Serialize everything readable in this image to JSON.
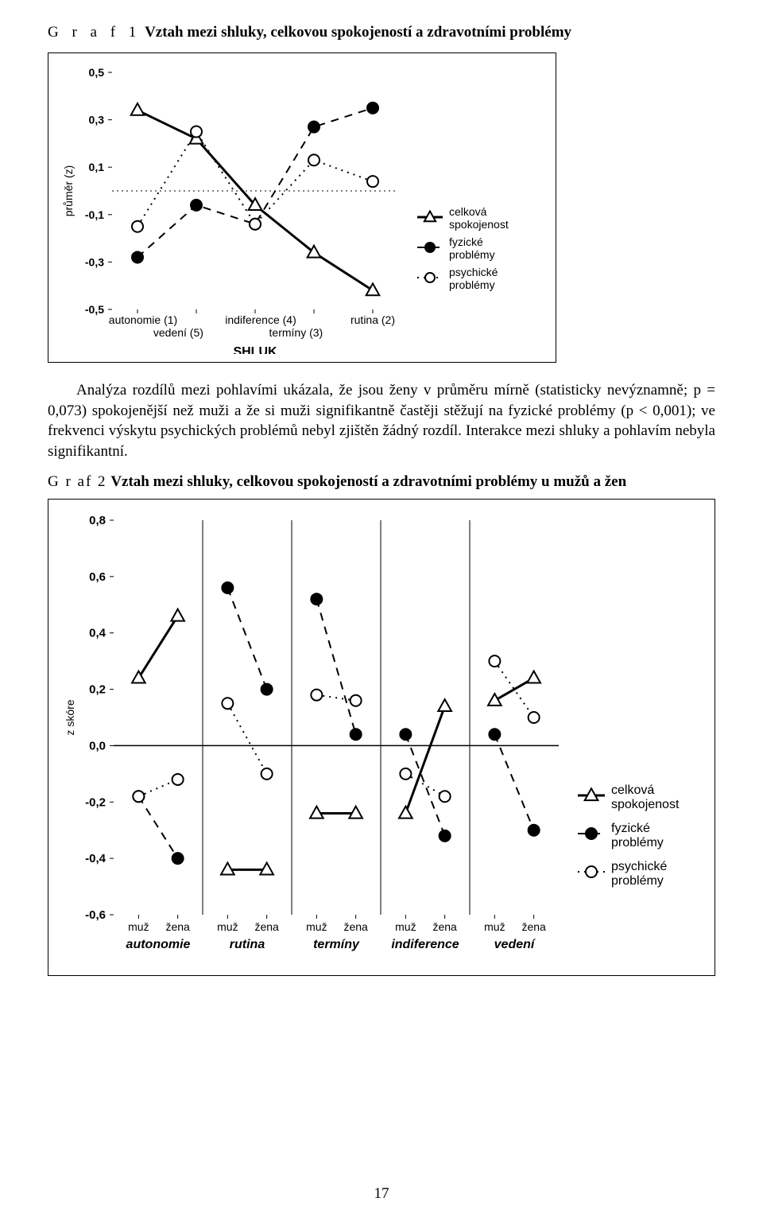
{
  "page_number": "17",
  "title1": {
    "prefix": "G r a f 1",
    "bold": "Vztah mezi shluky, celkovou spokojeností a zdravotními problémy"
  },
  "body": "Analýza rozdílů mezi pohlavími ukázala, že jsou ženy v průměru mírně (statisticky nevýznamně; p = 0,073) spokojenější než muži a že si muži signifikantně častěji stěžují na fyzické problémy (p < 0,001); ve frekvenci výskytu psychických problémů nebyl zjištěn žádný rozdíl. Interakce mezi shluky a pohlavím nebyla signifikantní.",
  "title2": {
    "prefix": "G r af 2",
    "bold": "Vztah mezi shluky, celkovou spokojeností a zdravotními problémy u mužů a žen"
  },
  "chart1": {
    "type": "line",
    "ylabel": "průměr (z)",
    "x_axis_label": "SHLUK",
    "x_categories": [
      "autonomie (1)",
      "vedení (5)",
      "indiference (4)",
      "termíny (3)",
      "rutina (2)"
    ],
    "x_layout": [
      {
        "top": "autonomie (1)",
        "bottom": "vedení (5)"
      },
      {
        "top": "indiference (4)",
        "bottom": "termíny (3)"
      },
      {
        "top": "rutina (2)",
        "bottom": ""
      }
    ],
    "y_ticks": [
      -0.5,
      -0.3,
      -0.1,
      0.1,
      0.3,
      0.5
    ],
    "y_tick_labels": [
      "-0,5",
      "-0,3",
      "-0,1",
      "0,1",
      "0,3",
      "0,5"
    ],
    "ylim": [
      -0.5,
      0.5
    ],
    "series": {
      "celkova_spokojenost": {
        "label": "celková spokojenost",
        "marker": "triangle",
        "color": "#000000",
        "fill": "none",
        "line": "solid",
        "values": [
          0.34,
          0.22,
          -0.06,
          -0.26,
          -0.42
        ]
      },
      "fyzicke_problemy": {
        "label": "fyzické problémy",
        "marker": "circle",
        "color": "#000000",
        "fill": "#000000",
        "line": "dashed",
        "values": [
          -0.28,
          -0.06,
          -0.14,
          0.27,
          0.35
        ]
      },
      "psychicke_problemy": {
        "label": "psychické problémy",
        "marker": "circle",
        "color": "#000000",
        "fill": "none",
        "line": "dotted",
        "values": [
          -0.15,
          0.25,
          -0.14,
          0.13,
          0.04
        ]
      }
    },
    "background": "#ffffff",
    "tick_fontsize": 14,
    "label_fontsize": 14,
    "axis_title_fontsize": 14,
    "legend_fontsize": 14
  },
  "chart2": {
    "type": "panel-line",
    "ylabel": "z skóre",
    "y_ticks": [
      -0.6,
      -0.4,
      -0.2,
      0.0,
      0.2,
      0.4,
      0.6,
      0.8
    ],
    "y_tick_labels": [
      "-0,6",
      "-0,4",
      "-0,2",
      "0,0",
      "0,2",
      "0,4",
      "0,6",
      "0,8"
    ],
    "ylim": [
      -0.6,
      0.8
    ],
    "x_sub_labels": [
      "muž",
      "žena"
    ],
    "panels": [
      {
        "name": "autonomie",
        "series": {
          "celkova": [
            0.24,
            0.46
          ],
          "fyzicke": [
            -0.18,
            -0.4
          ],
          "psychicke": [
            -0.18,
            -0.12
          ]
        }
      },
      {
        "name": "rutina",
        "series": {
          "celkova": [
            -0.44,
            -0.44
          ],
          "fyzicke": [
            0.56,
            0.2
          ],
          "psychicke": [
            0.15,
            -0.1
          ]
        }
      },
      {
        "name": "termíny",
        "series": {
          "celkova": [
            -0.24,
            -0.24
          ],
          "fyzicke": [
            0.52,
            0.04
          ],
          "psychicke": [
            0.18,
            0.16
          ]
        }
      },
      {
        "name": "indiference",
        "series": {
          "celkova": [
            -0.24,
            0.14
          ],
          "fyzicke": [
            0.04,
            -0.32
          ],
          "psychicke": [
            -0.1,
            -0.18
          ]
        }
      },
      {
        "name": "vedení",
        "series": {
          "celkova": [
            0.16,
            0.24
          ],
          "fyzicke": [
            0.04,
            -0.3
          ],
          "psychicke": [
            0.3,
            0.1
          ]
        }
      }
    ],
    "series_meta": {
      "celkova": {
        "label": "celková spokojenost",
        "marker": "triangle",
        "fill": "none",
        "line": "solid"
      },
      "fyzicke": {
        "label": "fyzické problémy",
        "marker": "circle",
        "fill": "#000000",
        "line": "dashed"
      },
      "psychicke": {
        "label": "psychické problémy",
        "marker": "circle",
        "fill": "none",
        "line": "dotted"
      }
    },
    "background": "#ffffff",
    "tick_fontsize": 15,
    "panel_label_fontsize": 16,
    "legend_fontsize": 16
  }
}
